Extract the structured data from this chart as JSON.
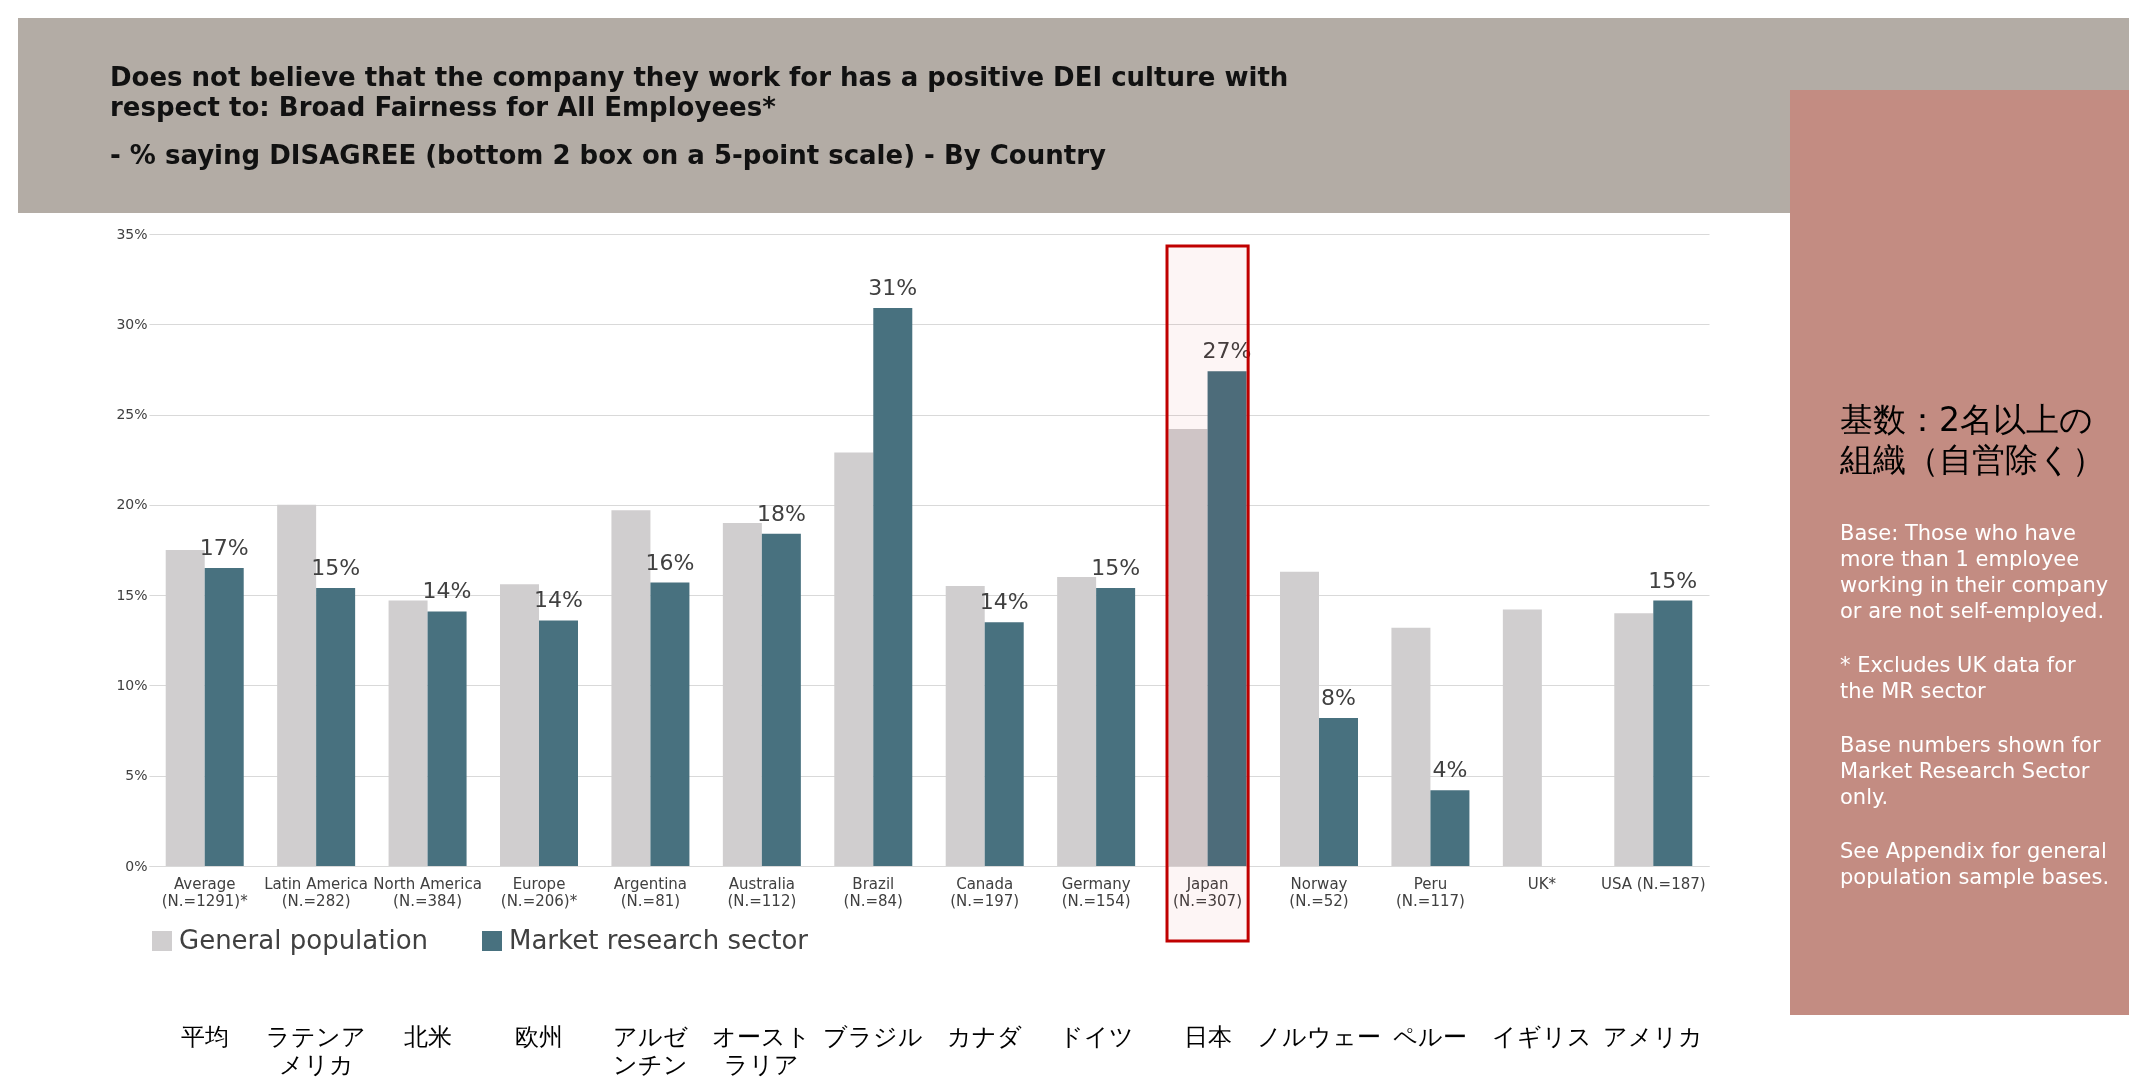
{
  "chart_data": {
    "type": "bar",
    "title": "Does not believe that the company they work for has a positive DEI culture with respect to: Broad Fairness for All Employees*",
    "subtitle": "- % saying DISAGREE (bottom 2 box on a 5-point scale) - By Country",
    "categories": [
      "Average (N.=1291)*",
      "Latin America (N.=282)",
      "North America (N.=384)",
      "Europe (N.=206)*",
      "Argentina (N.=81)",
      "Australia (N.=112)",
      "Brazil (N.=84)",
      "Canada (N.=197)",
      "Germany (N.=154)",
      "Japan (N.=307)",
      "Norway (N.=52)",
      "Peru (N.=117)",
      "UK*",
      "USA (N.=187)"
    ],
    "series": [
      {
        "name": "General population",
        "color": "#d0cecf",
        "values": [
          17.5,
          20.0,
          14.7,
          15.6,
          19.7,
          19.0,
          22.9,
          15.5,
          16.0,
          24.2,
          16.3,
          13.2,
          14.2,
          14.0
        ]
      },
      {
        "name": "Market research sector",
        "color": "#48717f",
        "values": [
          16.5,
          15.4,
          14.1,
          13.6,
          15.7,
          18.4,
          30.9,
          13.5,
          15.4,
          27.4,
          8.2,
          4.2,
          null,
          14.7
        ],
        "value_labels": [
          "17%",
          "15%",
          "14%",
          "14%",
          "16%",
          "18%",
          "31%",
          "14%",
          "15%",
          "27%",
          "8%",
          "4%",
          null,
          "15%"
        ]
      }
    ],
    "ylim": [
      0,
      35
    ],
    "yticks": [
      {
        "value": 0,
        "label": "0%"
      },
      {
        "value": 5,
        "label": "5%"
      },
      {
        "value": 10,
        "label": "10%"
      },
      {
        "value": 15,
        "label": "15%"
      },
      {
        "value": 20,
        "label": "20%"
      },
      {
        "value": 25,
        "label": "25%"
      },
      {
        "value": 30,
        "label": "30%"
      },
      {
        "value": 35,
        "label": "35%"
      }
    ],
    "grid": "y",
    "legend": "bottom",
    "bands": [
      {
        "axis": "x",
        "from": "Japan (N.=307)",
        "to": "Japan (N.=307)",
        "color": "#c00000"
      }
    ],
    "annotations": [
      "平均",
      "ラテンアメリカ",
      "北米",
      "欧州",
      "アルゼンチン",
      "オーストラリア",
      "ブラジル",
      "カナダ",
      "ドイツ",
      "日本",
      "ノルウェー",
      "ペルー",
      "イギリス",
      "アメリカ",
      "基数：2名以上の組織（自営除く）",
      "Base: Those who have more than 1 employee working in their company or are not self-employed.",
      "* Excludes UK data for the MR sector",
      "Base numbers shown for Market Research Sector only.",
      "See Appendix for general population sample bases."
    ]
  }
}
